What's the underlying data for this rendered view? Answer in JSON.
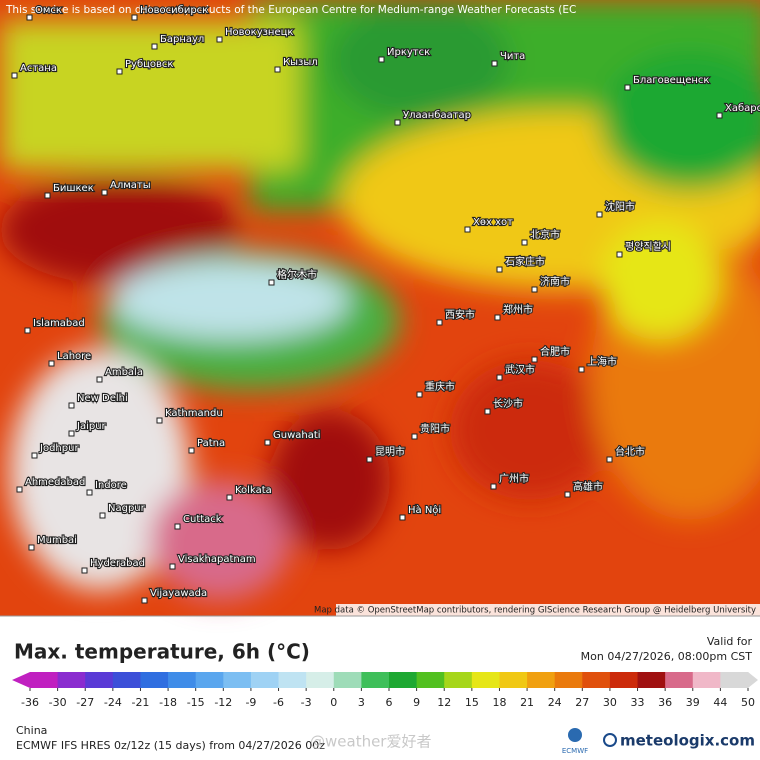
{
  "notice": "This service is based on data and products of the European Centre for Medium-range Weather Forecasts (EC",
  "attribution": "Map data © OpenStreetMap contributors, rendering GIScience Research Group @ Heidelberg University",
  "title": "Max. temperature, 6h (°C)",
  "valid_label": "Valid for",
  "valid_time": "Mon 04/27/2026, 08:00pm CST",
  "colorbar": {
    "ticks": [
      -36,
      -30,
      -27,
      -24,
      -21,
      -18,
      -15,
      -12,
      -9,
      -6,
      -3,
      0,
      3,
      6,
      9,
      12,
      15,
      18,
      21,
      24,
      27,
      30,
      33,
      36,
      39,
      44,
      50
    ],
    "colors": [
      "#c020c0",
      "#8a2ccf",
      "#5a3ad6",
      "#3c4fd8",
      "#2f6ee0",
      "#3f8ce8",
      "#5aa6ee",
      "#7cbef2",
      "#9fd2f4",
      "#bfe3f2",
      "#d6eee8",
      "#9edcb8",
      "#3fbf5a",
      "#1ea832",
      "#52c020",
      "#a6d61a",
      "#e6e618",
      "#f0c814",
      "#f0a010",
      "#ea7a0c",
      "#e0500c",
      "#cc2a0a",
      "#a01010",
      "#d86a8a",
      "#f0b8c8",
      "#d8d8d8"
    ]
  },
  "region": "China",
  "model": "ECMWF IFS HRES 0z/12z (15 days) from 04/27/2026 00z",
  "watermark": "@weather爱好者",
  "ecmwf": "ECMWF",
  "brand": "meteologix.com",
  "places": [
    "Омск",
    "Новосибирск",
    "Барнаул",
    "Новокузнецк",
    "Рубцовск",
    "Астана",
    "Кызыл",
    "Иркутск",
    "Чита",
    "Улаанбаатар",
    "Благовещенск",
    "Хабаровск",
    "Бишкек",
    "Алматы",
    "Хөх хот",
    "北京市",
    "沈阳市",
    "평양직할시",
    "石家庄市",
    "济南市",
    "西安市",
    "郑州市",
    "合肥市",
    "武汉市",
    "上海市",
    "重庆市",
    "长沙市",
    "贵阳市",
    "昆明市",
    "广州市",
    "台北市",
    "高雄市",
    "Hà Nội",
    "Islamabad",
    "Lahore",
    "Ambala",
    "New Delhi",
    "Kathmandu",
    "Jaipur",
    "Jodhpur",
    "Ahmedabad",
    "Indore",
    "Nagpur",
    "Patna",
    "Guwahati",
    "Kolkata",
    "Cuttack",
    "Mumbai",
    "Hyderabad",
    "Visakhapatnam",
    "Vijayawada",
    "格尔木市"
  ]
}
